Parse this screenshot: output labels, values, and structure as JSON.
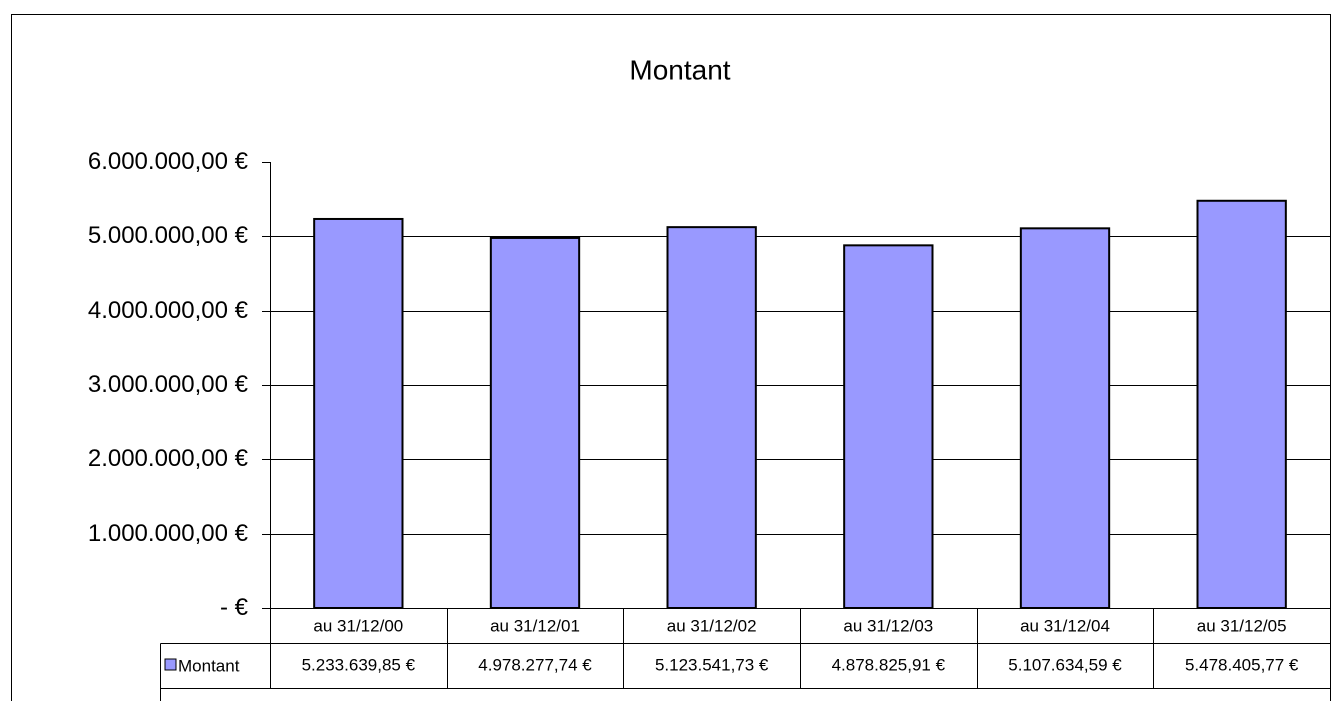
{
  "chart_data": {
    "type": "bar",
    "title": "Montant",
    "categories": [
      "au 31/12/00",
      "au 31/12/01",
      "au 31/12/02",
      "au 31/12/03",
      "au 31/12/04",
      "au 31/12/05"
    ],
    "series": [
      {
        "name": "Montant",
        "color": "#9999ff",
        "values": [
          5233639.85,
          4978277.74,
          5123541.73,
          4878825.91,
          5107634.59,
          5478405.77
        ],
        "value_labels": [
          "5.233.639,85 €",
          "4.978.277,74 €",
          "5.123.541,73 €",
          "4.878.825,91 €",
          "5.107.634,59 €",
          "5.478.405,77 €"
        ]
      }
    ],
    "ylim": [
      0,
      6000000
    ],
    "yticks": [
      {
        "value": 0,
        "label": "-   €"
      },
      {
        "value": 1000000,
        "label": "1.000.000,00 €"
      },
      {
        "value": 2000000,
        "label": "2.000.000,00 €"
      },
      {
        "value": 3000000,
        "label": "3.000.000,00 €"
      },
      {
        "value": 4000000,
        "label": "4.000.000,00 €"
      },
      {
        "value": 5000000,
        "label": "5.000.000,00 €"
      },
      {
        "value": 6000000,
        "label": "6.000.000,00 €"
      }
    ],
    "grid": true
  }
}
